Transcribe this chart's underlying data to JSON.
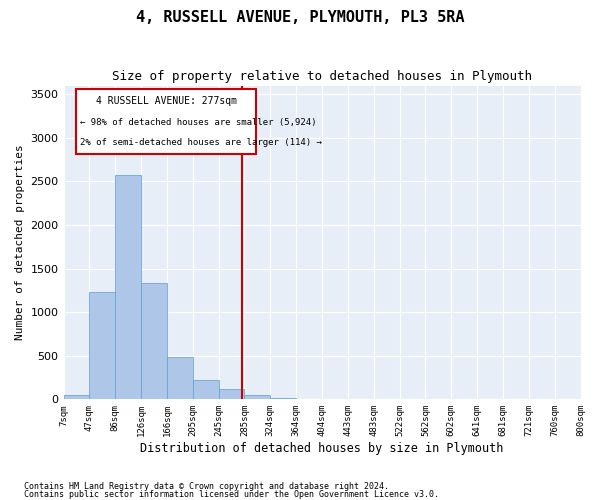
{
  "title": "4, RUSSELL AVENUE, PLYMOUTH, PL3 5RA",
  "subtitle": "Size of property relative to detached houses in Plymouth",
  "xlabel": "Distribution of detached houses by size in Plymouth",
  "ylabel": "Number of detached properties",
  "bin_labels": [
    "7sqm",
    "47sqm",
    "86sqm",
    "126sqm",
    "166sqm",
    "205sqm",
    "245sqm",
    "285sqm",
    "324sqm",
    "364sqm",
    "404sqm",
    "443sqm",
    "483sqm",
    "522sqm",
    "562sqm",
    "602sqm",
    "641sqm",
    "681sqm",
    "721sqm",
    "760sqm",
    "800sqm"
  ],
  "bar_values": [
    55,
    1230,
    2570,
    1330,
    490,
    225,
    120,
    45,
    20,
    0,
    0,
    0,
    0,
    0,
    0,
    0,
    0,
    0,
    0,
    0
  ],
  "bar_color": "#aec6e8",
  "bar_edgecolor": "#5a9fd4",
  "property_label": "4 RUSSELL AVENUE: 277sqm",
  "annotation_line1": "← 98% of detached houses are smaller (5,924)",
  "annotation_line2": "2% of semi-detached houses are larger (114) →",
  "vline_color": "#cc0000",
  "box_edgecolor": "#cc0000",
  "ylim": [
    0,
    3600
  ],
  "yticks": [
    0,
    500,
    1000,
    1500,
    2000,
    2500,
    3000,
    3500
  ],
  "bg_color": "#e8eef7",
  "footer_line1": "Contains HM Land Registry data © Crown copyright and database right 2024.",
  "footer_line2": "Contains public sector information licensed under the Open Government Licence v3.0.",
  "vline_x": 6.92
}
